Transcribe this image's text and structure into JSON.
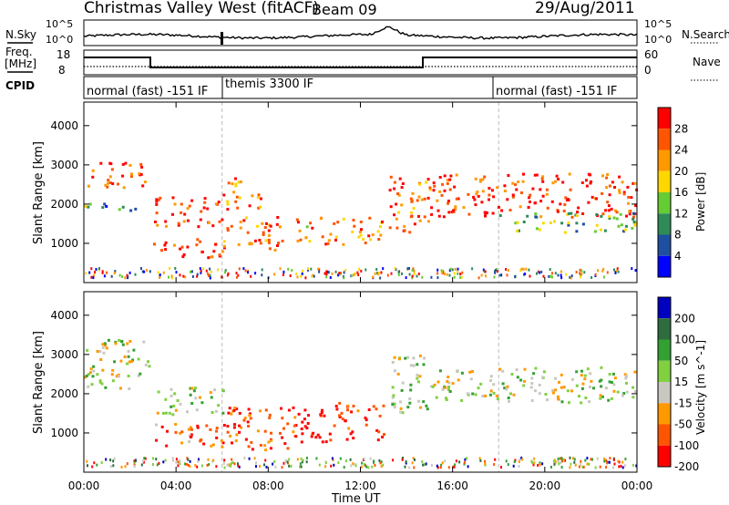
{
  "header": {
    "title": "Christmas Valley West (fitACF)",
    "beam": "Beam 09",
    "date": "29/Aug/2011"
  },
  "noise_panel": {
    "left_label": "N.Sky",
    "right_label": "N.Search",
    "left_ticks": [
      "10^5",
      "10^0"
    ],
    "right_ticks": [
      "10^5",
      "10^0"
    ]
  },
  "freq_panel": {
    "left_label_1": "Freq.",
    "left_label_2": "[MHz]",
    "right_label": "Nave",
    "left_ticks": [
      "18",
      "8"
    ],
    "right_ticks": [
      "60",
      "0"
    ]
  },
  "cpid_panel": {
    "label": "CPID",
    "segments": [
      {
        "text": "normal (fast) -151 IF",
        "start": 0
      },
      {
        "text": "themis 3300 IF",
        "start": 6
      },
      {
        "text": "normal (fast) -151 IF",
        "start": 18
      }
    ]
  },
  "time_axis": {
    "xlabel": "Time UT",
    "ticks": [
      "00:00",
      "04:00",
      "08:00",
      "12:00",
      "16:00",
      "20:00",
      "00:00"
    ]
  },
  "chart_data": [
    {
      "type": "heatmap",
      "name": "power",
      "ylabel": "Slant Range [km]",
      "xlim": [
        0,
        24
      ],
      "ylim": [
        0,
        4600
      ],
      "yticks": [
        "1000",
        "2000",
        "3000",
        "4000"
      ],
      "colorbar": {
        "label": "Power [dB]",
        "ticks": [
          "28",
          "24",
          "20",
          "16",
          "12",
          "8",
          "4"
        ],
        "colors": [
          "#ff0000",
          "#ff5500",
          "#ff9900",
          "#ffd700",
          "#66cc33",
          "#2e8b57",
          "#1f4fa0",
          "#0000ff"
        ]
      },
      "bands": [
        {
          "start": 0.0,
          "end": 2.7,
          "ymin": 2450,
          "ymax": 3100,
          "level": 0.85
        },
        {
          "start": 0.0,
          "end": 2.9,
          "ymin": 1850,
          "ymax": 2050,
          "level": 0.3
        },
        {
          "start": 3.0,
          "end": 6.0,
          "ymin": 1450,
          "ymax": 2200,
          "level": 0.9
        },
        {
          "start": 3.0,
          "end": 6.0,
          "ymin": 650,
          "ymax": 1150,
          "level": 0.9
        },
        {
          "start": 6.0,
          "end": 8.6,
          "ymin": 800,
          "ymax": 1700,
          "level": 0.8
        },
        {
          "start": 6.0,
          "end": 7.7,
          "ymin": 1900,
          "ymax": 2700,
          "level": 0.75
        },
        {
          "start": 9.2,
          "end": 13.0,
          "ymin": 1000,
          "ymax": 1700,
          "level": 0.7
        },
        {
          "start": 13.2,
          "end": 15.0,
          "ymin": 1300,
          "ymax": 2800,
          "level": 0.8
        },
        {
          "start": 15.0,
          "end": 24.0,
          "ymin": 1700,
          "ymax": 2800,
          "level": 0.88
        },
        {
          "start": 18.0,
          "end": 24.0,
          "ymin": 1300,
          "ymax": 1800,
          "level": 0.4
        }
      ]
    },
    {
      "type": "heatmap",
      "name": "velocity",
      "ylabel": "Slant Range [km]",
      "xlim": [
        0,
        24
      ],
      "ylim": [
        0,
        4600
      ],
      "yticks": [
        "1000",
        "2000",
        "3000",
        "4000"
      ],
      "colorbar": {
        "label": "Velocity [m s^-1]",
        "ticks": [
          "200",
          "100",
          "50",
          "15",
          "-15",
          "-50",
          "-100",
          "-200"
        ],
        "colors": [
          "#0000c0",
          "#2e6b3e",
          "#33a033",
          "#80d040",
          "#c8c8c0",
          "#ff9900",
          "#ff5500",
          "#ff0000"
        ]
      },
      "bands": [
        {
          "start": 0.0,
          "end": 2.8,
          "ymin": 2100,
          "ymax": 3400,
          "level": 0.5
        },
        {
          "start": 3.0,
          "end": 6.0,
          "ymin": 1500,
          "ymax": 2200,
          "level": 0.5
        },
        {
          "start": 3.0,
          "end": 6.0,
          "ymin": 650,
          "ymax": 1300,
          "level": 0.2
        },
        {
          "start": 6.0,
          "end": 9.0,
          "ymin": 600,
          "ymax": 1700,
          "level": 0.15
        },
        {
          "start": 9.0,
          "end": 13.0,
          "ymin": 800,
          "ymax": 1800,
          "level": 0.05
        },
        {
          "start": 13.3,
          "end": 15.0,
          "ymin": 1500,
          "ymax": 3000,
          "level": 0.5
        },
        {
          "start": 15.0,
          "end": 24.0,
          "ymin": 1800,
          "ymax": 2700,
          "level": 0.5
        }
      ]
    }
  ],
  "colors": {
    "axis": "#000000",
    "dashed_divider": "#bbbbbb"
  }
}
